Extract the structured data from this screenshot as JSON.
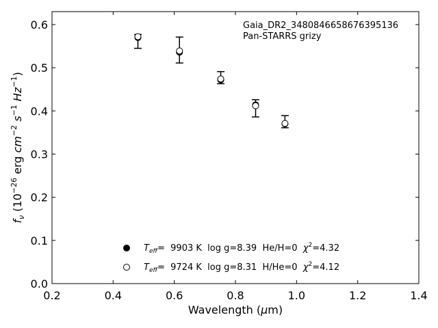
{
  "chart_data": {
    "type": "scatter",
    "title": "",
    "xlabel_parts": [
      "Wavelength (",
      "μ",
      "m)"
    ],
    "ylabel_parts": [
      "f",
      "ν",
      " (10",
      "−26",
      " erg ",
      "cm",
      "−2",
      " ",
      "s",
      "−1",
      " ",
      "Hz",
      "−1",
      ")"
    ],
    "xlim": [
      0.2,
      1.4
    ],
    "ylim": [
      0.0,
      0.63
    ],
    "xticks": [
      0.2,
      0.4,
      0.6,
      0.8,
      1.0,
      1.2,
      1.4
    ],
    "xtick_labels": [
      "0.2",
      "0.4",
      "0.6",
      "0.8",
      "1.0",
      "1.2",
      "1.4"
    ],
    "yticks": [
      0.0,
      0.1,
      0.2,
      0.3,
      0.4,
      0.5,
      0.6
    ],
    "ytick_labels": [
      "0.0",
      "0.1",
      "0.2",
      "0.3",
      "0.4",
      "0.5",
      "0.6"
    ],
    "annotation": [
      "Gaia_DR2_3480846658676395136",
      "Pan-STARRS grizy"
    ],
    "observed": {
      "x": [
        0.481,
        0.617,
        0.752,
        0.866,
        0.962
      ],
      "y": [
        0.561,
        0.541,
        0.477,
        0.406,
        0.375
      ],
      "err": [
        0.016,
        0.03,
        0.014,
        0.02,
        0.014
      ]
    },
    "series": [
      {
        "name_parts": [
          "T",
          "eff",
          "=  9903 K  log g=8.39  He/H=0  ",
          "χ",
          "2",
          "=4.32"
        ],
        "marker": "filled-circle",
        "x": [
          0.481,
          0.617,
          0.752,
          0.866,
          0.962
        ],
        "y": [
          0.57,
          0.536,
          0.472,
          0.414,
          0.37
        ]
      },
      {
        "name_parts": [
          "T",
          "eff",
          "=  9724 K  log g=8.31  H/He=0  ",
          "χ",
          "2",
          "=4.12"
        ],
        "marker": "open-circle",
        "x": [
          0.481,
          0.617,
          0.752,
          0.866,
          0.962
        ],
        "y": [
          0.572,
          0.539,
          0.474,
          0.412,
          0.371
        ]
      }
    ],
    "grid": false,
    "legend_position": "lower-center",
    "colors": {
      "marker": "#000000",
      "axis": "#000000",
      "background": "#ffffff"
    }
  }
}
